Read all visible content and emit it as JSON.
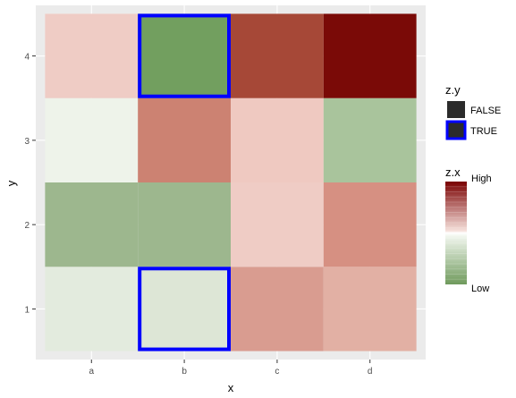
{
  "chart_data": {
    "type": "heatmap",
    "title": "",
    "xlabel": "x",
    "ylabel": "y",
    "x_categories": [
      "a",
      "b",
      "c",
      "d"
    ],
    "y_categories": [
      "1",
      "2",
      "3",
      "4"
    ],
    "grid": true,
    "legend_position": "right",
    "cells": [
      {
        "x": "a",
        "y": "1",
        "value": -0.15,
        "color": "#e3ebde",
        "highlight": false
      },
      {
        "x": "b",
        "y": "1",
        "value": -0.2,
        "color": "#dde6d6",
        "highlight": true
      },
      {
        "x": "c",
        "y": "1",
        "value": 0.45,
        "color": "#d99c90",
        "highlight": false
      },
      {
        "x": "d",
        "y": "1",
        "value": 0.35,
        "color": "#e2b0a4",
        "highlight": false
      },
      {
        "x": "a",
        "y": "2",
        "value": -0.6,
        "color": "#9db78e",
        "highlight": false
      },
      {
        "x": "b",
        "y": "2",
        "value": -0.6,
        "color": "#9db78e",
        "highlight": false
      },
      {
        "x": "c",
        "y": "2",
        "value": 0.2,
        "color": "#efccc5",
        "highlight": false
      },
      {
        "x": "d",
        "y": "2",
        "value": 0.5,
        "color": "#d69082",
        "highlight": false
      },
      {
        "x": "a",
        "y": "3",
        "value": -0.05,
        "color": "#eef3ea",
        "highlight": false
      },
      {
        "x": "b",
        "y": "3",
        "value": 0.55,
        "color": "#cc8272",
        "highlight": false
      },
      {
        "x": "c",
        "y": "3",
        "value": 0.2,
        "color": "#efc9c1",
        "highlight": false
      },
      {
        "x": "d",
        "y": "3",
        "value": -0.55,
        "color": "#a9c49c",
        "highlight": false
      },
      {
        "x": "a",
        "y": "4",
        "value": 0.2,
        "color": "#efccc5",
        "highlight": false
      },
      {
        "x": "b",
        "y": "4",
        "value": -0.85,
        "color": "#729f5f",
        "highlight": true
      },
      {
        "x": "c",
        "y": "4",
        "value": 0.85,
        "color": "#a64837",
        "highlight": false
      },
      {
        "x": "d",
        "y": "4",
        "value": 1.0,
        "color": "#7a0a07",
        "highlight": false
      }
    ],
    "legend_zy": {
      "title": "z.y",
      "entries": [
        {
          "label": "FALSE",
          "color": "#2b2b2b",
          "border": "#2b2b2b"
        },
        {
          "label": "TRUE",
          "color": "#2b2b2b",
          "border": "#0000ff"
        }
      ]
    },
    "legend_zx": {
      "title": "z.x",
      "high_label": "High",
      "low_label": "Low",
      "high_color": "#7a0000",
      "mid_color": "#ffffff",
      "low_color": "#6f9a5c"
    },
    "colors": {
      "panel_bg": "#ebebeb",
      "grid_line": "#ffffff",
      "highlight_border": "#0000ff",
      "axis_text": "#4d4d4d",
      "axis_title": "#000000"
    }
  }
}
